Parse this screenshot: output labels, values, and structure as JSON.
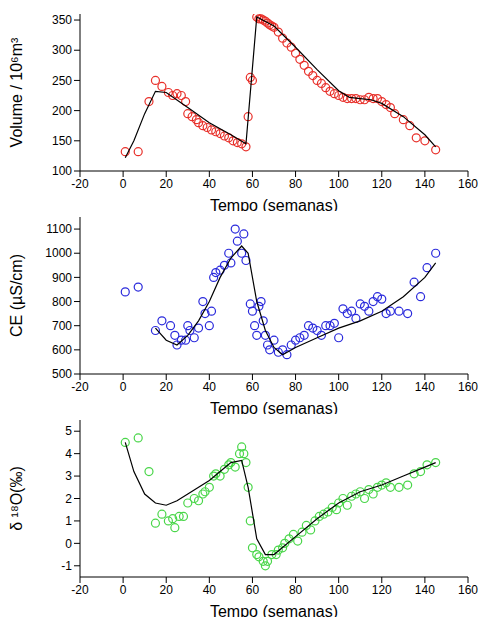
{
  "chart_data": [
    {
      "type": "scatter",
      "x_label": "Tempo (semanas)",
      "y_label": "Volume / 10⁶m³",
      "xlim": [
        -20,
        160
      ],
      "xticks": [
        -20,
        0,
        20,
        40,
        60,
        80,
        100,
        120,
        140,
        160
      ],
      "ylim": [
        100,
        360
      ],
      "yticks": [
        100,
        150,
        200,
        250,
        300,
        350
      ],
      "series": [
        {
          "type": "scatter",
          "marker": "circle_open",
          "color": "#e8302a",
          "x": [
            1,
            7,
            12,
            15,
            18,
            21,
            23,
            25,
            27,
            29,
            30,
            32,
            34,
            35,
            37,
            39,
            41,
            43,
            45,
            47,
            49,
            51,
            53,
            55,
            57,
            58,
            59,
            60,
            62,
            63,
            64,
            65,
            66,
            67,
            68,
            69,
            70,
            72,
            74,
            76,
            78,
            80,
            82,
            84,
            86,
            88,
            90,
            92,
            94,
            96,
            98,
            100,
            102,
            104,
            106,
            108,
            110,
            112,
            114,
            116,
            118,
            120,
            122,
            124,
            126,
            130,
            133,
            136,
            140,
            145
          ],
          "values": [
            132,
            132,
            215,
            250,
            240,
            230,
            225,
            228,
            225,
            215,
            195,
            190,
            185,
            180,
            175,
            172,
            168,
            165,
            162,
            158,
            155,
            150,
            147,
            145,
            140,
            190,
            255,
            250,
            355,
            352,
            352,
            350,
            348,
            345,
            342,
            340,
            338,
            330,
            320,
            312,
            305,
            295,
            285,
            275,
            265,
            258,
            250,
            245,
            238,
            232,
            228,
            225,
            222,
            220,
            220,
            220,
            218,
            218,
            222,
            220,
            220,
            215,
            210,
            205,
            195,
            185,
            175,
            155,
            150,
            135
          ]
        },
        {
          "type": "line",
          "line_style": "solid",
          "color": "#000000",
          "x": [
            1,
            5,
            10,
            15,
            20,
            30,
            40,
            50,
            57,
            62,
            70,
            80,
            90,
            100,
            105,
            110,
            115,
            120,
            130,
            140,
            145
          ],
          "values": [
            122,
            150,
            195,
            232,
            230,
            205,
            180,
            160,
            145,
            355,
            340,
            305,
            268,
            233,
            222,
            220,
            218,
            212,
            190,
            160,
            140
          ]
        }
      ]
    },
    {
      "type": "scatter",
      "x_label": "Tempo (semanas)",
      "y_label": "CE (µS/cm)",
      "xlim": [
        -20,
        160
      ],
      "xticks": [
        -20,
        0,
        20,
        40,
        60,
        80,
        100,
        120,
        140,
        160
      ],
      "ylim": [
        500,
        1150
      ],
      "yticks": [
        500,
        600,
        700,
        800,
        900,
        1000,
        1100
      ],
      "series": [
        {
          "type": "scatter",
          "marker": "circle_open",
          "color": "#2a2adc",
          "x": [
            1,
            7,
            15,
            18,
            22,
            24,
            25,
            27,
            29,
            30,
            31,
            33,
            35,
            37,
            38,
            40,
            41,
            42,
            43,
            45,
            47,
            49,
            50,
            52,
            53,
            55,
            56,
            57,
            59,
            60,
            61,
            62,
            63,
            64,
            65,
            66,
            67,
            68,
            70,
            72,
            74,
            76,
            78,
            80,
            82,
            84,
            86,
            88,
            90,
            92,
            94,
            96,
            98,
            100,
            102,
            104,
            106,
            108,
            110,
            112,
            114,
            116,
            118,
            120,
            122,
            124,
            128,
            132,
            135,
            138,
            141,
            145
          ],
          "values": [
            840,
            860,
            680,
            720,
            700,
            660,
            620,
            640,
            640,
            700,
            680,
            650,
            690,
            800,
            750,
            700,
            760,
            900,
            920,
            930,
            950,
            1000,
            960,
            1100,
            1050,
            1000,
            1080,
            970,
            790,
            760,
            700,
            660,
            780,
            800,
            720,
            660,
            620,
            600,
            640,
            590,
            600,
            580,
            620,
            640,
            650,
            660,
            700,
            690,
            680,
            660,
            700,
            700,
            710,
            650,
            770,
            750,
            760,
            730,
            790,
            780,
            760,
            800,
            820,
            810,
            750,
            760,
            760,
            750,
            880,
            820,
            940,
            1000
          ]
        },
        {
          "type": "line",
          "line_style": "solid",
          "color": "#000000",
          "x": [
            15,
            20,
            25,
            30,
            35,
            40,
            45,
            50,
            55,
            58,
            62,
            66,
            70,
            74,
            80,
            90,
            100,
            110,
            120,
            130,
            140,
            145
          ],
          "values": [
            690,
            640,
            620,
            660,
            720,
            800,
            900,
            980,
            1030,
            1000,
            800,
            680,
            610,
            580,
            610,
            650,
            690,
            720,
            760,
            820,
            900,
            960
          ]
        }
      ]
    },
    {
      "type": "scatter",
      "x_label": "Tempo (semanas)",
      "y_label": "δ ¹⁸O(‰)",
      "xlim": [
        -20,
        160
      ],
      "xticks": [
        -20,
        0,
        20,
        40,
        60,
        80,
        100,
        120,
        140,
        160
      ],
      "ylim": [
        -1.5,
        5.5
      ],
      "yticks": [
        -1,
        0,
        1,
        2,
        3,
        4,
        5
      ],
      "series": [
        {
          "type": "scatter",
          "marker": "circle_open",
          "color": "#49d649",
          "x": [
            1,
            7,
            12,
            15,
            18,
            21,
            23,
            24,
            26,
            28,
            30,
            33,
            35,
            37,
            38,
            40,
            42,
            43,
            45,
            47,
            49,
            50,
            52,
            54,
            55,
            56,
            57,
            58,
            59,
            60,
            62,
            63,
            65,
            66,
            67,
            69,
            71,
            72,
            74,
            75,
            77,
            79,
            81,
            83,
            85,
            87,
            89,
            91,
            93,
            95,
            97,
            99,
            100,
            102,
            104,
            106,
            108,
            110,
            112,
            114,
            116,
            118,
            120,
            122,
            124,
            128,
            132,
            135,
            138,
            141,
            145
          ],
          "values": [
            4.5,
            4.7,
            3.2,
            0.9,
            1.3,
            1.0,
            1.1,
            0.7,
            1.2,
            1.2,
            1.8,
            2.0,
            1.9,
            2.2,
            2.3,
            2.5,
            3.0,
            3.1,
            3.0,
            3.3,
            3.5,
            3.6,
            3.4,
            4.0,
            4.3,
            4.0,
            3.6,
            2.5,
            1.0,
            -0.2,
            -0.5,
            -0.6,
            -0.8,
            -1.0,
            -0.8,
            -0.5,
            -0.5,
            -0.3,
            -0.2,
            0.0,
            0.2,
            0.4,
            0.1,
            0.5,
            0.8,
            0.6,
            1.0,
            1.2,
            1.3,
            1.4,
            1.6,
            1.5,
            1.8,
            2.0,
            1.7,
            2.1,
            2.2,
            2.3,
            2.0,
            2.4,
            2.2,
            2.5,
            2.6,
            2.7,
            2.5,
            2.5,
            2.6,
            3.1,
            3.2,
            3.5,
            3.6
          ]
        },
        {
          "type": "line",
          "line_style": "solid",
          "color": "#000000",
          "x": [
            1,
            5,
            10,
            15,
            20,
            25,
            30,
            35,
            40,
            45,
            50,
            55,
            58,
            62,
            66,
            70,
            80,
            90,
            100,
            110,
            120,
            130,
            140,
            145
          ],
          "values": [
            4.5,
            3.2,
            2.2,
            1.8,
            1.7,
            1.9,
            2.2,
            2.5,
            2.8,
            3.2,
            3.6,
            3.7,
            2.5,
            0.2,
            -0.5,
            -0.5,
            0.3,
            1.1,
            1.8,
            2.3,
            2.6,
            3.0,
            3.4,
            3.6
          ]
        }
      ]
    }
  ]
}
